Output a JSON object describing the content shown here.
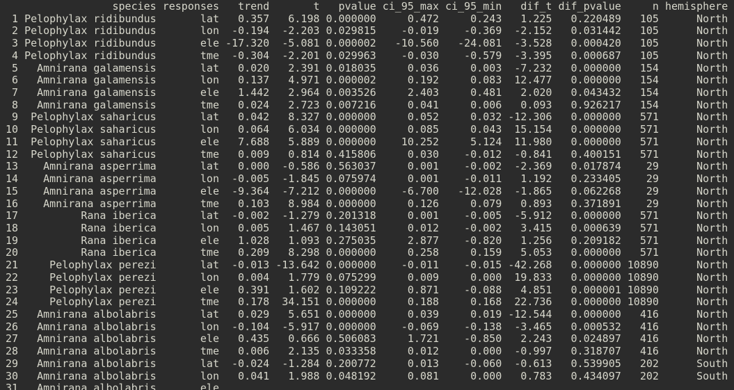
{
  "terminal": {
    "colors": {
      "background": "#2b2b2b",
      "foreground": "#d7d7cb"
    },
    "table": {
      "row_number_header": "",
      "columns": [
        "species",
        "responses",
        "trend",
        "t",
        "pvalue",
        "ci_95_max",
        "ci_95_min",
        "dif_t",
        "dif_pvalue",
        "n",
        "hemisphere"
      ],
      "column_keys": [
        "row-number",
        "species",
        "responses",
        "trend",
        "t",
        "pvalue",
        "ci-95-max",
        "ci-95-min",
        "dif-t",
        "dif-pvalue",
        "n",
        "hemisphere"
      ],
      "rows": [
        [
          "1",
          "Pelophylax ridibundus",
          "lat",
          "0.357",
          "6.198",
          "0.000000",
          "0.472",
          "0.243",
          "1.225",
          "0.220489",
          "105",
          "North"
        ],
        [
          "2",
          "Pelophylax ridibundus",
          "lon",
          "-0.194",
          "-2.203",
          "0.029815",
          "-0.019",
          "-0.369",
          "-2.152",
          "0.031442",
          "105",
          "North"
        ],
        [
          "3",
          "Pelophylax ridibundus",
          "ele",
          "-17.320",
          "-5.081",
          "0.000002",
          "-10.560",
          "-24.081",
          "-3.528",
          "0.000420",
          "105",
          "North"
        ],
        [
          "4",
          "Pelophylax ridibundus",
          "tme",
          "-0.304",
          "-2.201",
          "0.029963",
          "-0.030",
          "-0.579",
          "-3.395",
          "0.000687",
          "105",
          "North"
        ],
        [
          "5",
          "Amnirana galamensis",
          "lat",
          "0.020",
          "2.391",
          "0.018035",
          "0.036",
          "0.003",
          "-7.232",
          "0.000000",
          "154",
          "North"
        ],
        [
          "6",
          "Amnirana galamensis",
          "lon",
          "0.137",
          "4.971",
          "0.000002",
          "0.192",
          "0.083",
          "12.477",
          "0.000000",
          "154",
          "North"
        ],
        [
          "7",
          "Amnirana galamensis",
          "ele",
          "1.442",
          "2.964",
          "0.003526",
          "2.403",
          "0.481",
          "2.020",
          "0.043432",
          "154",
          "North"
        ],
        [
          "8",
          "Amnirana galamensis",
          "tme",
          "0.024",
          "2.723",
          "0.007216",
          "0.041",
          "0.006",
          "0.093",
          "0.926217",
          "154",
          "North"
        ],
        [
          "9",
          "Pelophylax saharicus",
          "lat",
          "0.042",
          "8.327",
          "0.000000",
          "0.052",
          "0.032",
          "-12.306",
          "0.000000",
          "571",
          "North"
        ],
        [
          "10",
          "Pelophylax saharicus",
          "lon",
          "0.064",
          "6.034",
          "0.000000",
          "0.085",
          "0.043",
          "15.154",
          "0.000000",
          "571",
          "North"
        ],
        [
          "11",
          "Pelophylax saharicus",
          "ele",
          "7.688",
          "5.889",
          "0.000000",
          "10.252",
          "5.124",
          "11.980",
          "0.000000",
          "571",
          "North"
        ],
        [
          "12",
          "Pelophylax saharicus",
          "tme",
          "0.009",
          "0.814",
          "0.415806",
          "0.030",
          "-0.012",
          "-0.841",
          "0.400151",
          "571",
          "North"
        ],
        [
          "13",
          "Amnirana asperrima",
          "lat",
          "0.000",
          "-0.586",
          "0.563037",
          "0.001",
          "-0.002",
          "-2.369",
          "0.017874",
          "29",
          "North"
        ],
        [
          "14",
          "Amnirana asperrima",
          "lon",
          "-0.005",
          "-1.845",
          "0.075974",
          "0.001",
          "-0.011",
          "1.192",
          "0.233405",
          "29",
          "North"
        ],
        [
          "15",
          "Amnirana asperrima",
          "ele",
          "-9.364",
          "-7.212",
          "0.000000",
          "-6.700",
          "-12.028",
          "-1.865",
          "0.062268",
          "29",
          "North"
        ],
        [
          "16",
          "Amnirana asperrima",
          "tme",
          "0.103",
          "8.984",
          "0.000000",
          "0.126",
          "0.079",
          "0.893",
          "0.371891",
          "29",
          "North"
        ],
        [
          "17",
          "Rana iberica",
          "lat",
          "-0.002",
          "-1.279",
          "0.201318",
          "0.001",
          "-0.005",
          "-5.912",
          "0.000000",
          "571",
          "North"
        ],
        [
          "18",
          "Rana iberica",
          "lon",
          "0.005",
          "1.467",
          "0.143051",
          "0.012",
          "-0.002",
          "3.415",
          "0.000639",
          "571",
          "North"
        ],
        [
          "19",
          "Rana iberica",
          "ele",
          "1.028",
          "1.093",
          "0.275035",
          "2.877",
          "-0.820",
          "1.256",
          "0.209182",
          "571",
          "North"
        ],
        [
          "20",
          "Rana iberica",
          "tme",
          "0.209",
          "8.298",
          "0.000000",
          "0.258",
          "0.159",
          "5.053",
          "0.000000",
          "571",
          "North"
        ],
        [
          "21",
          "Pelophylax perezi",
          "lat",
          "-0.013",
          "-13.642",
          "0.000000",
          "-0.011",
          "-0.015",
          "-42.268",
          "0.000000",
          "10890",
          "North"
        ],
        [
          "22",
          "Pelophylax perezi",
          "lon",
          "0.004",
          "1.779",
          "0.075299",
          "0.009",
          "0.000",
          "19.833",
          "0.000000",
          "10890",
          "North"
        ],
        [
          "23",
          "Pelophylax perezi",
          "ele",
          "0.391",
          "1.602",
          "0.109222",
          "0.871",
          "-0.088",
          "4.851",
          "0.000001",
          "10890",
          "North"
        ],
        [
          "24",
          "Pelophylax perezi",
          "tme",
          "0.178",
          "34.151",
          "0.000000",
          "0.188",
          "0.168",
          "22.736",
          "0.000000",
          "10890",
          "North"
        ],
        [
          "25",
          "Amnirana albolabris",
          "lat",
          "0.029",
          "5.651",
          "0.000000",
          "0.039",
          "0.019",
          "-12.544",
          "0.000000",
          "416",
          "North"
        ],
        [
          "26",
          "Amnirana albolabris",
          "lon",
          "-0.104",
          "-5.917",
          "0.000000",
          "-0.069",
          "-0.138",
          "-3.465",
          "0.000532",
          "416",
          "North"
        ],
        [
          "27",
          "Amnirana albolabris",
          "ele",
          "0.435",
          "0.666",
          "0.506083",
          "1.721",
          "-0.850",
          "2.243",
          "0.024897",
          "416",
          "North"
        ],
        [
          "28",
          "Amnirana albolabris",
          "tme",
          "0.006",
          "2.135",
          "0.033358",
          "0.012",
          "0.000",
          "-0.997",
          "0.318707",
          "416",
          "North"
        ],
        [
          "29",
          "Amnirana albolabris",
          "lat",
          "-0.024",
          "-1.284",
          "0.200772",
          "0.013",
          "-0.060",
          "-0.613",
          "0.539905",
          "202",
          "South"
        ],
        [
          "30",
          "Amnirana albolabris",
          "lon",
          "0.041",
          "1.988",
          "0.048192",
          "0.081",
          "0.000",
          "0.783",
          "0.434097",
          "202",
          "South"
        ]
      ],
      "partial_row": [
        "31",
        "Amnirana albolabris",
        "ele",
        "",
        "",
        "",
        "",
        "",
        "",
        "",
        "",
        ""
      ]
    }
  }
}
